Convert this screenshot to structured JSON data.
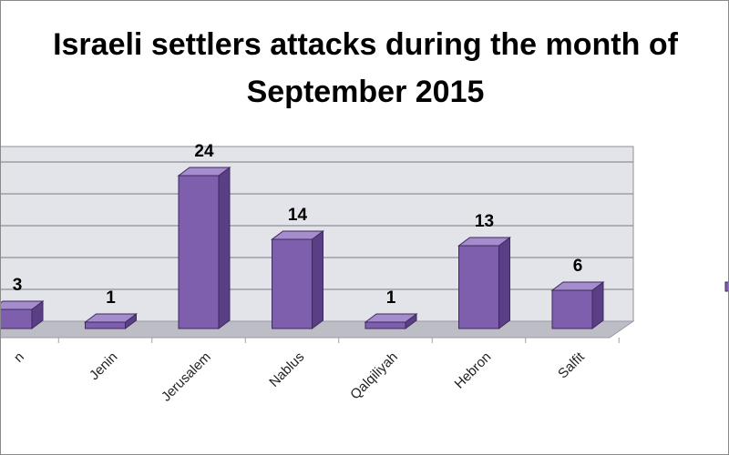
{
  "chart_data": {
    "type": "bar",
    "title_line1": "Israeli settlers attacks during the month of",
    "title_line2": "September 2015",
    "categories": [
      "Tubas",
      "Jenin",
      "Jerusalem",
      "Nablus",
      "Qalqiliyah",
      "Hebron",
      "Salfit"
    ],
    "visible_category_labels": [
      "n",
      "Jenin",
      "Jerusalem",
      "Nablus",
      "Qalqiliyah",
      "Hebron",
      "Salfit"
    ],
    "values": [
      3,
      1,
      24,
      14,
      1,
      13,
      6
    ],
    "ylim": [
      0,
      30
    ],
    "grid": true,
    "style": "3d-column",
    "colors": {
      "bar_front": "#7e5fad",
      "bar_side": "#5b3f86",
      "bar_top": "#a58ccc",
      "bar_edge": "#3d2a5c",
      "back_wall": "#e3e3ea",
      "floor": "#bdbdc6",
      "gridline": "#8f8f99"
    }
  }
}
